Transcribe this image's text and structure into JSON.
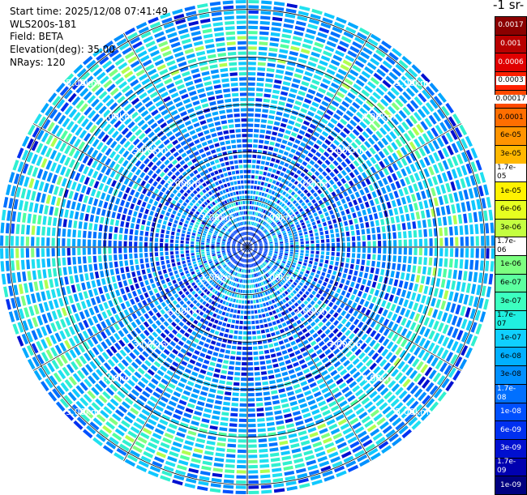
{
  "header": {
    "start_time": "Start time: 2025/12/08 07:41:49",
    "instrument": "WLS200s-181",
    "field": "Field: BETA",
    "elevation": "Elevation(deg): 35.00",
    "nrays": "NRays: 120"
  },
  "colorbar": {
    "title": "-1 sr-",
    "labels": [
      "0.0017",
      "0.001",
      "0.0006",
      "0.0003",
      "0.00017",
      "0.0001",
      "6e-05",
      "3e-05",
      "1.7e-05",
      "1e-05",
      "6e-06",
      "3e-06",
      "1.7e-06",
      "1e-06",
      "6e-07",
      "3e-07",
      "1.7e-07",
      "1e-07",
      "6e-08",
      "3e-08",
      "1.7e-08",
      "1e-08",
      "6e-09",
      "3e-09",
      "1.7e-09",
      "1e-09"
    ],
    "colors": [
      "#8b0000",
      "#b80000",
      "#e00000",
      "#ff2000",
      "#ff4a00",
      "#ff6e00",
      "#ff9400",
      "#ffb800",
      "#ffd800",
      "#fff200",
      "#e6ff20",
      "#c4ff40",
      "#a0ff60",
      "#7cff80",
      "#5cffa0",
      "#3cffc0",
      "#20f0e0",
      "#10d0ff",
      "#00b0ff",
      "#0090ff",
      "#0070ff",
      "#0050ff",
      "#0030f0",
      "#0010d0",
      "#0000b0",
      "#000080"
    ],
    "label_colors": [
      "#ffffff",
      "#ffffff",
      "#ffffff",
      "#ffffff",
      "#000000",
      "#000000",
      "#000000",
      "#000000",
      "#000000",
      "#000000",
      "#000000",
      "#000000",
      "#000000",
      "#000000",
      "#000000",
      "#000000",
      "#000000",
      "#000000",
      "#000000",
      "#000000",
      "#ffffff",
      "#ffffff",
      "#ffffff",
      "#ffffff",
      "#ffffff",
      "#ffffff"
    ]
  },
  "chart_data": {
    "type": "heatmap",
    "projection": "polar",
    "field": "BETA",
    "elevation_deg": 35.0,
    "n_rays": 120,
    "max_range_km": 5.2,
    "range_rings_km": [
      1,
      2,
      3,
      4,
      5
    ],
    "range_labels": [
      "1.00km",
      "2.00km",
      "3.00km",
      "4.00km",
      "5.00km"
    ],
    "background_level": "3e-08",
    "enhanced_ring_km": [
      3.8,
      4.7
    ],
    "enhanced_level": "1.7e-07",
    "grid": true
  }
}
